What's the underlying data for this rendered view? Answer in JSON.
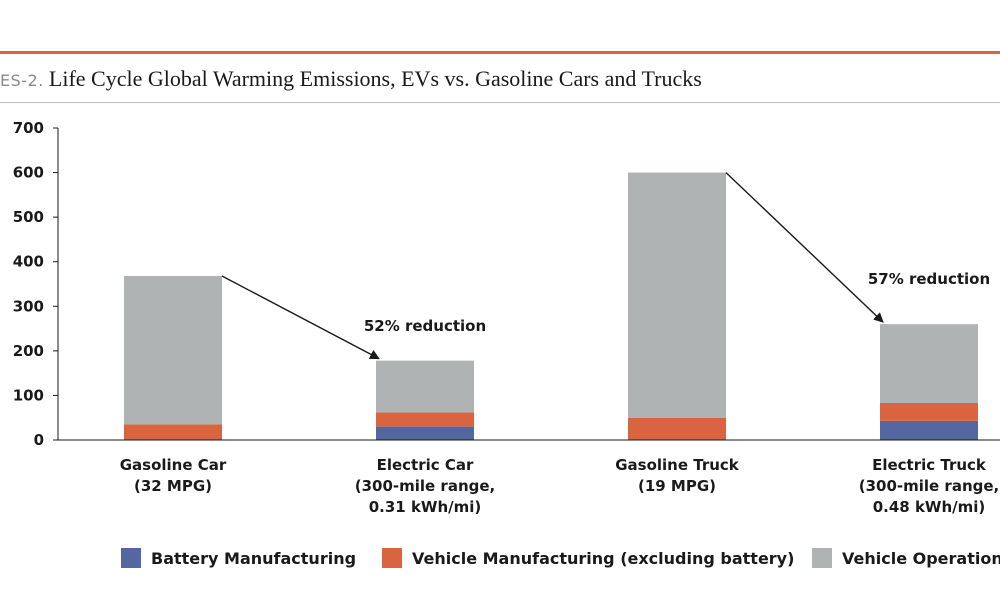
{
  "figure": {
    "label": "ES-2.",
    "title": "Life Cycle Global Warming Emissions, EVs vs. Gasoline Cars and Trucks",
    "accent_color": "#d9643f"
  },
  "chart_data": {
    "type": "bar",
    "stacked": true,
    "ylim": [
      0,
      700
    ],
    "yticks": [
      "0",
      "100",
      "200",
      "300",
      "400",
      "500",
      "600",
      "700"
    ],
    "grid": false,
    "legend_position": "bottom",
    "categories": [
      {
        "line1": "Gasoline Car",
        "line2": "(32 MPG)",
        "line3": ""
      },
      {
        "line1": "Electric Car",
        "line2": "(300-mile range,",
        "line3": "0.31 kWh/mi)"
      },
      {
        "line1": "Gasoline Truck",
        "line2": "(19 MPG)",
        "line3": ""
      },
      {
        "line1": "Electric Truck",
        "line2": "(300-mile range,",
        "line3": "0.48 kWh/mi)"
      }
    ],
    "series": [
      {
        "name": "Battery Manufacturing",
        "color": "#5467a0",
        "values": [
          0,
          30,
          0,
          43
        ]
      },
      {
        "name": "Vehicle Manufacturing (excluding battery)",
        "color": "#d9643f",
        "values": [
          35,
          32,
          50,
          40
        ]
      },
      {
        "name": "Vehicle Operation",
        "color": "#b0b3b3",
        "values": [
          333,
          116,
          550,
          177
        ]
      }
    ],
    "annotations": [
      {
        "text": "52% reduction",
        "from_category": 0,
        "to_category": 1
      },
      {
        "text": "57% reduction",
        "from_category": 2,
        "to_category": 3
      }
    ]
  }
}
